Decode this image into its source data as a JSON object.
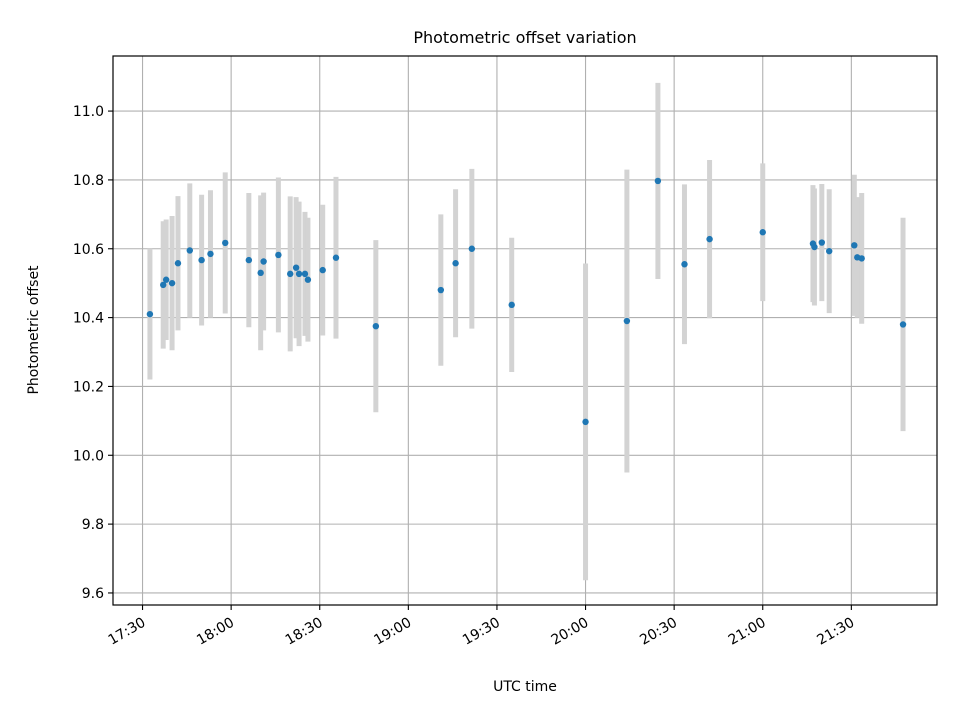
{
  "chart_data": {
    "type": "scatter",
    "title": "Photometric offset variation",
    "xlabel": "UTC time",
    "ylabel": "Photometric offset",
    "xlim": [
      "17:20",
      "21:59"
    ],
    "ylim": [
      9.565,
      11.16
    ],
    "grid": true,
    "xticks": [
      "17:30",
      "18:00",
      "18:30",
      "19:00",
      "19:30",
      "20:00",
      "20:30",
      "21:00",
      "21:30"
    ],
    "yticks": [
      "9.6",
      "9.8",
      "10.0",
      "10.2",
      "10.4",
      "10.6",
      "10.8",
      "11.0"
    ],
    "colors": {
      "points": "#1f77b4",
      "errorbars": "#d3d3d3",
      "grid": "#b0b0b0"
    },
    "points": [
      {
        "x": "17:32:30",
        "y": 10.41,
        "err": 0.19
      },
      {
        "x": "17:37:00",
        "y": 10.495,
        "err": 0.185
      },
      {
        "x": "17:38:00",
        "y": 10.51,
        "err": 0.175
      },
      {
        "x": "17:40:00",
        "y": 10.5,
        "err": 0.195
      },
      {
        "x": "17:42:00",
        "y": 10.558,
        "err": 0.195
      },
      {
        "x": "17:46:00",
        "y": 10.595,
        "err": 0.195
      },
      {
        "x": "17:50:00",
        "y": 10.567,
        "err": 0.19
      },
      {
        "x": "17:53:00",
        "y": 10.585,
        "err": 0.185
      },
      {
        "x": "17:58:00",
        "y": 10.617,
        "err": 0.205
      },
      {
        "x": "18:06:00",
        "y": 10.567,
        "err": 0.195
      },
      {
        "x": "18:10:00",
        "y": 10.53,
        "err": 0.225
      },
      {
        "x": "18:11:00",
        "y": 10.563,
        "err": 0.2
      },
      {
        "x": "18:16:00",
        "y": 10.582,
        "err": 0.225
      },
      {
        "x": "18:20:00",
        "y": 10.527,
        "err": 0.225
      },
      {
        "x": "18:22:00",
        "y": 10.545,
        "err": 0.205
      },
      {
        "x": "18:23:00",
        "y": 10.527,
        "err": 0.21
      },
      {
        "x": "18:25:00",
        "y": 10.527,
        "err": 0.18
      },
      {
        "x": "18:26:00",
        "y": 10.51,
        "err": 0.18
      },
      {
        "x": "18:31:00",
        "y": 10.538,
        "err": 0.19
      },
      {
        "x": "18:35:30",
        "y": 10.574,
        "err": 0.235
      },
      {
        "x": "18:49:00",
        "y": 10.375,
        "err": 0.25
      },
      {
        "x": "19:11:00",
        "y": 10.48,
        "err": 0.22
      },
      {
        "x": "19:16:00",
        "y": 10.558,
        "err": 0.215
      },
      {
        "x": "19:21:30",
        "y": 10.6,
        "err": 0.232
      },
      {
        "x": "19:35:00",
        "y": 10.437,
        "err": 0.195
      },
      {
        "x": "20:00:00",
        "y": 10.097,
        "err": 0.46
      },
      {
        "x": "20:14:00",
        "y": 10.39,
        "err": 0.44
      },
      {
        "x": "20:24:30",
        "y": 10.797,
        "err": 0.285
      },
      {
        "x": "20:33:30",
        "y": 10.555,
        "err": 0.232
      },
      {
        "x": "20:42:00",
        "y": 10.628,
        "err": 0.23
      },
      {
        "x": "21:00:00",
        "y": 10.648,
        "err": 0.2
      },
      {
        "x": "21:17:00",
        "y": 10.615,
        "err": 0.17
      },
      {
        "x": "21:17:30",
        "y": 10.605,
        "err": 0.17
      },
      {
        "x": "21:20:00",
        "y": 10.618,
        "err": 0.17
      },
      {
        "x": "21:22:30",
        "y": 10.593,
        "err": 0.18
      },
      {
        "x": "21:31:00",
        "y": 10.61,
        "err": 0.205
      },
      {
        "x": "21:32:00",
        "y": 10.575,
        "err": 0.175
      },
      {
        "x": "21:33:30",
        "y": 10.572,
        "err": 0.19
      },
      {
        "x": "21:47:30",
        "y": 10.38,
        "err": 0.31
      }
    ]
  }
}
